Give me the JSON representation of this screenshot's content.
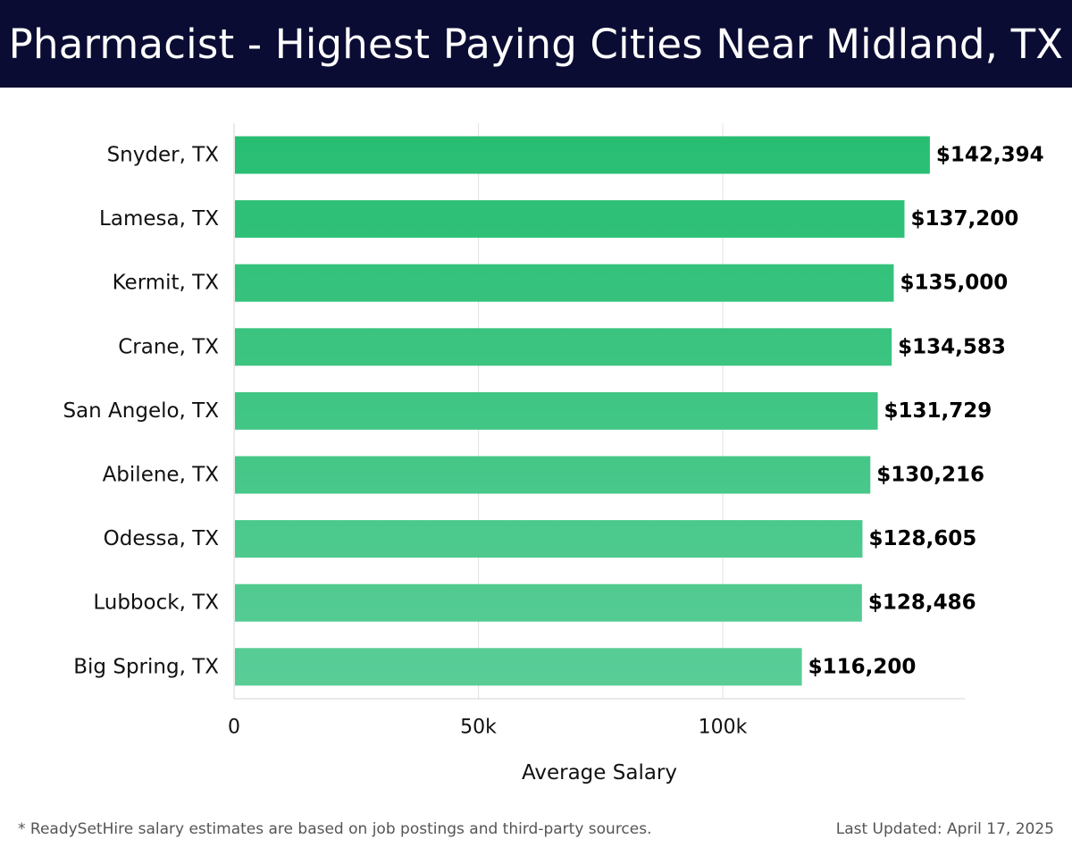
{
  "header": {
    "title": "Pharmacist - Highest Paying Cities Near Midland, TX"
  },
  "chart_data": {
    "type": "bar",
    "orientation": "horizontal",
    "categories": [
      "Snyder, TX",
      "Lamesa, TX",
      "Kermit, TX",
      "Crane, TX",
      "San Angelo, TX",
      "Abilene, TX",
      "Odessa, TX",
      "Lubbock, TX",
      "Big Spring, TX"
    ],
    "values": [
      142394,
      137200,
      135000,
      134583,
      131729,
      130216,
      128605,
      128486,
      116200
    ],
    "value_labels": [
      "$142,394",
      "$137,200",
      "$135,000",
      "$134,583",
      "$131,729",
      "$130,216",
      "$128,605",
      "$128,486",
      "$116,200"
    ],
    "xlabel": "Average Salary",
    "x_ticks": [
      0,
      50000,
      100000
    ],
    "x_tick_labels": [
      "0",
      "50k",
      "100k"
    ],
    "xlim": [
      0,
      150000
    ],
    "grid": "vertical",
    "colors": {
      "bar_top": "#27be72",
      "bar_bottom": "#5acd97"
    }
  },
  "footer": {
    "note": "* ReadySetHire salary estimates are based on job postings and third-party sources.",
    "updated": "Last Updated: April 17, 2025"
  }
}
